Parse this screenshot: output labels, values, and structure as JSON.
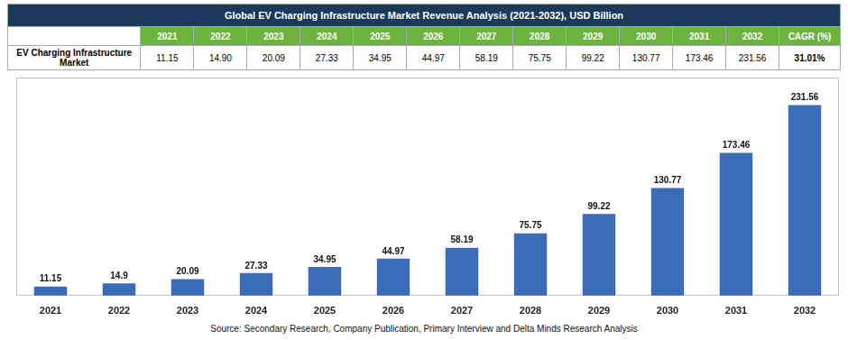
{
  "chart_data": {
    "type": "bar",
    "title": "Global EV Charging Infrastructure Market Revenue Analysis (2021-2032), USD Billion",
    "categories": [
      "2021",
      "2022",
      "2023",
      "2024",
      "2025",
      "2026",
      "2027",
      "2028",
      "2029",
      "2030",
      "2031",
      "2032"
    ],
    "values": [
      11.15,
      14.9,
      20.09,
      27.33,
      34.95,
      44.97,
      58.19,
      75.75,
      99.22,
      130.77,
      173.46,
      231.56
    ],
    "color": "#3B6CB7",
    "ylim": [
      0,
      265
    ],
    "grid": false,
    "data_labels": true,
    "tick_labels": "x",
    "table": {
      "row_label": "EV Charging Infrastructure Market",
      "cells": [
        "11.15",
        "14.90",
        "20.09",
        "27.33",
        "34.95",
        "44.97",
        "58.19",
        "75.75",
        "99.22",
        "130.77",
        "173.46",
        "231.56"
      ],
      "cagr_header": "CAGR (%)",
      "cagr": "31.01%"
    },
    "annotations": [
      "Source: Secondary Research, Company Publication, Primary Interview and Delta Minds Research Analysis"
    ]
  }
}
